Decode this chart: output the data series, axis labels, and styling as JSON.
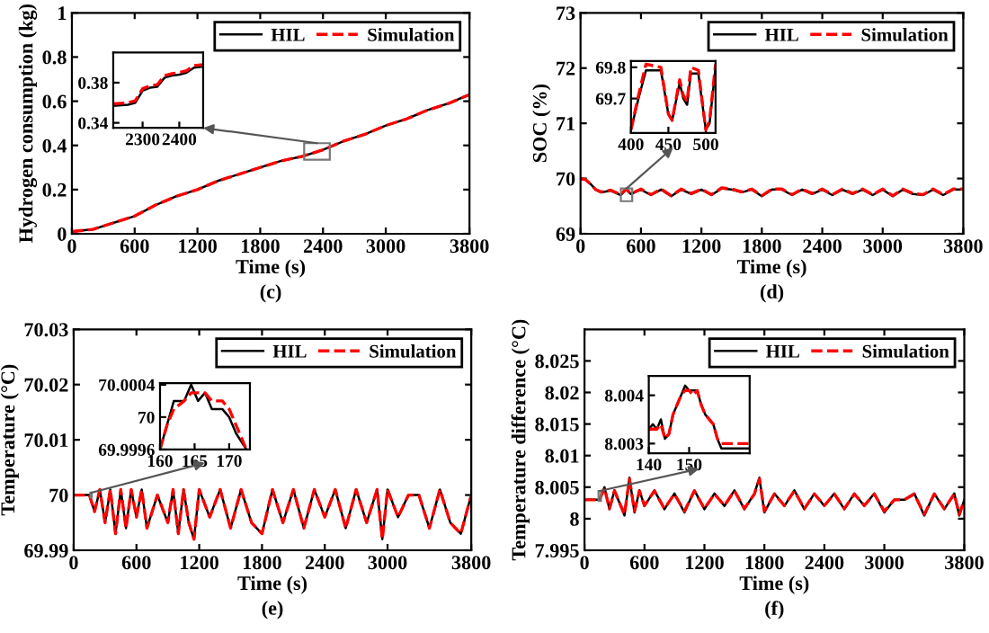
{
  "chart_data": [
    {
      "type": "line",
      "xlabel": "Time (s)",
      "ylabel": "Hydrogen consumption (kg)",
      "annotations": [
        "(c)"
      ],
      "legend": "top right",
      "grid": false,
      "xlim": [
        0,
        3800
      ],
      "ylim": [
        0,
        1
      ],
      "xticks": [
        0,
        600,
        1200,
        1800,
        2400,
        3000,
        3800
      ],
      "yticks": [
        0,
        0.2,
        0.4,
        0.6,
        0.8,
        1
      ],
      "x": [
        0,
        200,
        400,
        600,
        800,
        1000,
        1200,
        1400,
        1600,
        1800,
        2000,
        2200,
        2400,
        2600,
        2800,
        3000,
        3200,
        3400,
        3600,
        3800
      ],
      "series": [
        {
          "name": "HIL",
          "color": "#000000",
          "line_style": "solid",
          "values": [
            0.01,
            0.02,
            0.05,
            0.08,
            0.13,
            0.17,
            0.2,
            0.24,
            0.27,
            0.3,
            0.33,
            0.35,
            0.38,
            0.42,
            0.45,
            0.49,
            0.52,
            0.56,
            0.59,
            0.63
          ]
        },
        {
          "name": "Simulation",
          "color": "#ff0000",
          "line_style": "dashed",
          "values": [
            0.01,
            0.02,
            0.05,
            0.08,
            0.13,
            0.17,
            0.2,
            0.24,
            0.27,
            0.3,
            0.33,
            0.35,
            0.38,
            0.42,
            0.45,
            0.49,
            0.52,
            0.56,
            0.59,
            0.63
          ]
        }
      ]
    },
    {
      "type": "line",
      "xlim": [
        2220,
        2465
      ],
      "ylim": [
        0.335,
        0.41
      ],
      "xticks": [
        2300,
        2400
      ],
      "yticks": [
        0.34,
        0.38
      ],
      "x": [
        2220,
        2260,
        2280,
        2300,
        2320,
        2340,
        2360,
        2380,
        2400,
        2420,
        2440,
        2465
      ],
      "series": [
        {
          "color": "#000000",
          "line_style": "solid",
          "values": [
            0.357,
            0.358,
            0.36,
            0.372,
            0.375,
            0.376,
            0.385,
            0.387,
            0.388,
            0.39,
            0.395,
            0.396
          ]
        },
        {
          "color": "#ff0000",
          "line_style": "dashed",
          "values": [
            0.359,
            0.36,
            0.362,
            0.374,
            0.377,
            0.378,
            0.387,
            0.389,
            0.39,
            0.392,
            0.397,
            0.398
          ]
        }
      ]
    },
    {
      "type": "line",
      "xlabel": "Time (s)",
      "ylabel": "SOC (%)",
      "annotations": [
        "(d)"
      ],
      "legend": "top right",
      "grid": false,
      "xlim": [
        0,
        3800
      ],
      "ylim": [
        69,
        73
      ],
      "xticks": [
        0,
        600,
        1200,
        1800,
        2400,
        3000,
        3800
      ],
      "yticks": [
        69,
        70,
        71,
        72,
        73
      ],
      "x": [
        0,
        50,
        100,
        150,
        200,
        300,
        400,
        450,
        500,
        600,
        700,
        800,
        900,
        1000,
        1100,
        1200,
        1300,
        1400,
        1500,
        1600,
        1700,
        1800,
        1900,
        2000,
        2100,
        2200,
        2300,
        2400,
        2500,
        2600,
        2700,
        2800,
        2900,
        3000,
        3100,
        3200,
        3300,
        3400,
        3500,
        3600,
        3700,
        3800
      ],
      "series": [
        {
          "name": "HIL",
          "color": "#000000",
          "line_style": "solid",
          "values": [
            70.0,
            69.98,
            69.9,
            69.8,
            69.75,
            69.78,
            69.7,
            69.8,
            69.72,
            69.8,
            69.7,
            69.8,
            69.68,
            69.8,
            69.72,
            69.8,
            69.7,
            69.82,
            69.8,
            69.75,
            69.8,
            69.68,
            69.8,
            69.8,
            69.7,
            69.8,
            69.72,
            69.8,
            69.7,
            69.8,
            69.72,
            69.8,
            69.7,
            69.8,
            69.68,
            69.8,
            69.72,
            69.7,
            69.8,
            69.7,
            69.8,
            69.8
          ]
        },
        {
          "name": "Simulation",
          "color": "#ff0000",
          "line_style": "dashed",
          "values": [
            70.0,
            69.98,
            69.9,
            69.8,
            69.76,
            69.79,
            69.71,
            69.81,
            69.73,
            69.81,
            69.71,
            69.81,
            69.69,
            69.81,
            69.73,
            69.81,
            69.71,
            69.83,
            69.81,
            69.76,
            69.81,
            69.69,
            69.81,
            69.81,
            69.71,
            69.81,
            69.73,
            69.81,
            69.71,
            69.81,
            69.73,
            69.81,
            69.71,
            69.81,
            69.69,
            69.81,
            69.73,
            69.71,
            69.81,
            69.71,
            69.81,
            69.81
          ]
        }
      ]
    },
    {
      "type": "line",
      "xlim": [
        400,
        513
      ],
      "ylim": [
        69.59,
        69.82
      ],
      "xticks": [
        400,
        450,
        500
      ],
      "yticks": [
        69.7,
        69.8
      ],
      "x": [
        400,
        410,
        420,
        440,
        450,
        455,
        465,
        470,
        475,
        480,
        490,
        500,
        505,
        513
      ],
      "series": [
        {
          "color": "#000000",
          "line_style": "solid",
          "values": [
            69.6,
            69.7,
            69.79,
            69.79,
            69.65,
            69.63,
            69.75,
            69.7,
            69.68,
            69.78,
            69.78,
            69.6,
            69.62,
            69.8
          ]
        },
        {
          "color": "#ff0000",
          "line_style": "dashed",
          "values": [
            69.6,
            69.71,
            69.81,
            69.8,
            69.65,
            69.63,
            69.76,
            69.71,
            69.69,
            69.8,
            69.79,
            69.6,
            69.63,
            69.81
          ]
        }
      ]
    },
    {
      "type": "line",
      "xlabel": "Time (s)",
      "ylabel": "Temperature (°C)",
      "annotations": [
        "(e)"
      ],
      "legend": "top right",
      "grid": false,
      "xlim": [
        0,
        3800
      ],
      "ylim": [
        69.99,
        70.03
      ],
      "xticks": [
        0,
        600,
        1200,
        1800,
        2400,
        3000,
        3800
      ],
      "yticks": [
        69.99,
        70,
        70.01,
        70.02,
        70.03
      ],
      "x": [
        0,
        150,
        200,
        250,
        300,
        350,
        400,
        450,
        500,
        550,
        600,
        650,
        700,
        800,
        900,
        950,
        1000,
        1050,
        1100,
        1150,
        1200,
        1300,
        1400,
        1500,
        1600,
        1700,
        1800,
        1900,
        2000,
        2100,
        2200,
        2300,
        2400,
        2500,
        2600,
        2700,
        2800,
        2900,
        2950,
        3000,
        3100,
        3200,
        3300,
        3400,
        3500,
        3600,
        3700,
        3800
      ],
      "series": [
        {
          "name": "HIL",
          "color": "#000000",
          "line_style": "solid",
          "values": [
            70.0,
            70.0,
            69.997,
            70.001,
            69.995,
            70.001,
            69.993,
            70.001,
            69.994,
            70.001,
            69.996,
            70.001,
            69.994,
            70.0,
            69.995,
            70.001,
            69.993,
            70.001,
            69.995,
            69.992,
            70.001,
            69.996,
            70.001,
            69.994,
            70.001,
            69.995,
            69.993,
            70.001,
            69.995,
            70.001,
            69.994,
            70.001,
            69.996,
            70.001,
            69.994,
            70.001,
            69.995,
            70.001,
            69.992,
            70.001,
            69.996,
            70.0,
            70.0,
            69.994,
            70.001,
            69.995,
            69.993,
            70.0
          ]
        },
        {
          "name": "Simulation",
          "color": "#ff0000",
          "line_style": "dashed",
          "values": [
            70.0,
            70.0,
            69.997,
            70.001,
            69.995,
            70.001,
            69.993,
            70.001,
            69.994,
            70.001,
            69.996,
            70.001,
            69.994,
            70.0,
            69.995,
            70.001,
            69.993,
            70.001,
            69.995,
            69.992,
            70.001,
            69.996,
            70.001,
            69.994,
            70.001,
            69.995,
            69.993,
            70.001,
            69.995,
            70.001,
            69.994,
            70.001,
            69.996,
            70.001,
            69.994,
            70.001,
            69.995,
            70.001,
            69.992,
            70.001,
            69.996,
            70.0,
            70.0,
            69.994,
            70.001,
            69.995,
            69.993,
            70.0
          ]
        }
      ]
    },
    {
      "type": "line",
      "xlim": [
        160,
        173
      ],
      "ylim": [
        69.9996,
        70.00042
      ],
      "xticks": [
        160,
        165,
        170
      ],
      "yticks": [
        69.9996,
        70,
        70.0004
      ],
      "x": [
        160,
        161,
        162,
        163.5,
        164.5,
        165.5,
        166.5,
        167.5,
        169,
        170,
        171,
        172.5
      ],
      "series": [
        {
          "color": "#000000",
          "line_style": "solid",
          "values": [
            69.9996,
            69.9999,
            70.0002,
            70.0002,
            70.0004,
            70.0002,
            70.0003,
            70.0001,
            70.0001,
            70.0,
            69.9998,
            69.9996
          ]
        },
        {
          "color": "#ff0000",
          "line_style": "dashed",
          "values": [
            69.9996,
            69.9999,
            70.0001,
            70.0002,
            70.0003,
            70.0003,
            70.0003,
            70.0002,
            70.0002,
            70.0001,
            69.9999,
            69.9996
          ]
        }
      ]
    },
    {
      "type": "line",
      "xlabel": "Time (s)",
      "ylabel": "Temperature difference (°C)",
      "annotations": [
        "(f)"
      ],
      "legend": "top right",
      "grid": false,
      "xlim": [
        0,
        3800
      ],
      "ylim": [
        7.995,
        8.03
      ],
      "xticks": [
        0,
        600,
        1200,
        1800,
        2400,
        3000,
        3800
      ],
      "yticks": [
        7.995,
        8,
        8.005,
        8.01,
        8.015,
        8.02,
        8.025
      ],
      "x": [
        0,
        150,
        200,
        250,
        300,
        400,
        450,
        500,
        550,
        600,
        700,
        800,
        900,
        1000,
        1100,
        1200,
        1300,
        1400,
        1500,
        1600,
        1700,
        1750,
        1800,
        1900,
        2000,
        2100,
        2200,
        2300,
        2400,
        2500,
        2600,
        2700,
        2800,
        2900,
        3000,
        3100,
        3200,
        3300,
        3400,
        3500,
        3600,
        3700,
        3750,
        3800
      ],
      "series": [
        {
          "name": "HIL",
          "color": "#000000",
          "line_style": "solid",
          "values": [
            8.003,
            8.003,
            8.005,
            8.0015,
            8.0045,
            8.0005,
            8.0065,
            8.001,
            8.0045,
            8.002,
            8.0045,
            8.0015,
            8.004,
            8.001,
            8.0045,
            8.0015,
            8.004,
            8.002,
            8.0045,
            8.0015,
            8.004,
            8.0065,
            8.001,
            8.004,
            8.002,
            8.0045,
            8.0015,
            8.004,
            8.002,
            8.004,
            8.0015,
            8.004,
            8.002,
            8.004,
            8.001,
            8.003,
            8.003,
            8.004,
            8.0005,
            8.004,
            8.0015,
            8.004,
            8.0005,
            8.003
          ]
        },
        {
          "name": "Simulation",
          "color": "#ff0000",
          "line_style": "dashed",
          "values": [
            8.003,
            8.003,
            8.0048,
            8.0016,
            8.0044,
            8.0007,
            8.0063,
            8.0012,
            8.0044,
            8.0021,
            8.0044,
            8.0016,
            8.0039,
            8.0012,
            8.0044,
            8.0016,
            8.0039,
            8.0021,
            8.0044,
            8.0016,
            8.0039,
            8.0063,
            8.0012,
            8.0039,
            8.0021,
            8.0044,
            8.0016,
            8.0039,
            8.0021,
            8.0039,
            8.0016,
            8.0039,
            8.0021,
            8.0039,
            8.0012,
            8.003,
            8.003,
            8.0039,
            8.0007,
            8.0039,
            8.0016,
            8.0039,
            8.0007,
            8.003
          ]
        }
      ]
    },
    {
      "type": "line",
      "xlim": [
        140,
        165
      ],
      "ylim": [
        8.0028,
        8.0044
      ],
      "xticks": [
        140,
        150
      ],
      "yticks": [
        8.003,
        8.004
      ],
      "x": [
        140,
        141,
        142,
        143,
        144,
        145,
        146,
        148,
        149,
        150,
        151,
        152,
        153,
        154,
        156,
        157,
        158,
        165
      ],
      "series": [
        {
          "color": "#000000",
          "line_style": "solid",
          "values": [
            8.0033,
            8.0034,
            8.0033,
            8.0035,
            8.0031,
            8.0032,
            8.0036,
            8.004,
            8.0042,
            8.0041,
            8.0041,
            8.0041,
            8.0038,
            8.0036,
            8.0034,
            8.0031,
            8.0029,
            8.0029
          ]
        },
        {
          "color": "#ff0000",
          "line_style": "dashed",
          "values": [
            8.0033,
            8.0033,
            8.0033,
            8.0034,
            8.0031,
            8.0032,
            8.0036,
            8.004,
            8.0041,
            8.0041,
            8.004,
            8.0041,
            8.0038,
            8.0036,
            8.0034,
            8.0031,
            8.003,
            8.003
          ]
        }
      ]
    }
  ]
}
